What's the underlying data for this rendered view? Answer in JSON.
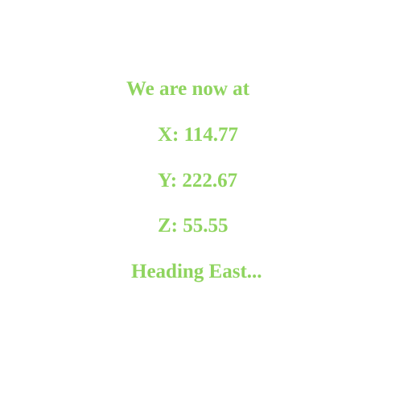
{
  "theme": {
    "text_color": "#8fd45f",
    "background": "#ffffff"
  },
  "status": {
    "intro": "We are now at",
    "x": "X: 114.77",
    "y": "Y: 222.67",
    "z": "Z: 55.55",
    "heading": "Heading East..."
  }
}
